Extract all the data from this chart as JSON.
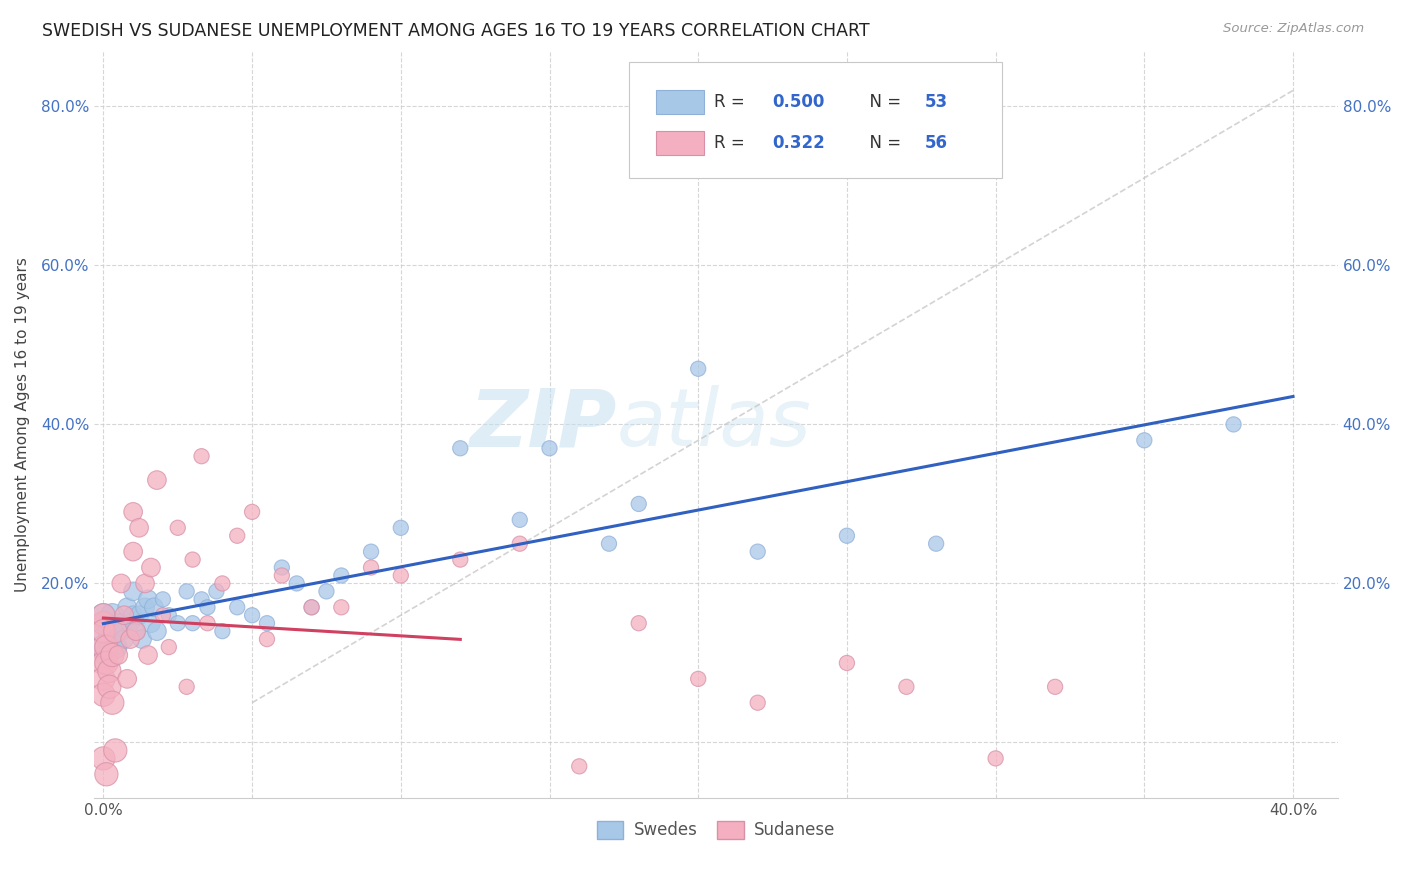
{
  "title": "SWEDISH VS SUDANESE UNEMPLOYMENT AMONG AGES 16 TO 19 YEARS CORRELATION CHART",
  "source": "Source: ZipAtlas.com",
  "ylabel": "Unemployment Among Ages 16 to 19 years",
  "xlim_lo": -0.003,
  "xlim_hi": 0.415,
  "ylim_lo": -0.07,
  "ylim_hi": 0.87,
  "xtick_vals": [
    0.0,
    0.05,
    0.1,
    0.15,
    0.2,
    0.25,
    0.3,
    0.35,
    0.4
  ],
  "xticklabels": [
    "0.0%",
    "",
    "",
    "",
    "",
    "",
    "",
    "",
    "40.0%"
  ],
  "ytick_vals": [
    0.0,
    0.2,
    0.4,
    0.6,
    0.8
  ],
  "yticklabels_left": [
    "",
    "20.0%",
    "40.0%",
    "60.0%",
    "80.0%"
  ],
  "yticklabels_right": [
    "",
    "20.0%",
    "40.0%",
    "60.0%",
    "80.0%"
  ],
  "swedes_color": "#a8c8e8",
  "sudanese_color": "#f4b0c0",
  "swedes_R": 0.5,
  "swedes_N": 53,
  "sudanese_R": 0.322,
  "sudanese_N": 56,
  "swedes_line_color": "#3060c0",
  "sudanese_line_color": "#d04060",
  "ref_line_color": "#c8c8c8",
  "watermark": "ZIPatlas",
  "background_color": "#ffffff",
  "swedes_x": [
    0.0,
    0.0,
    0.0,
    0.001,
    0.001,
    0.002,
    0.003,
    0.004,
    0.005,
    0.006,
    0.007,
    0.008,
    0.009,
    0.01,
    0.01,
    0.011,
    0.012,
    0.013,
    0.014,
    0.015,
    0.016,
    0.017,
    0.018,
    0.02,
    0.022,
    0.025,
    0.028,
    0.03,
    0.033,
    0.035,
    0.038,
    0.04,
    0.045,
    0.05,
    0.055,
    0.06,
    0.065,
    0.07,
    0.075,
    0.08,
    0.09,
    0.1,
    0.12,
    0.14,
    0.15,
    0.17,
    0.18,
    0.2,
    0.22,
    0.25,
    0.28,
    0.35,
    0.38
  ],
  "swedes_y": [
    0.12,
    0.14,
    0.16,
    0.11,
    0.15,
    0.13,
    0.16,
    0.12,
    0.15,
    0.14,
    0.13,
    0.17,
    0.15,
    0.16,
    0.19,
    0.14,
    0.16,
    0.13,
    0.17,
    0.18,
    0.15,
    0.17,
    0.14,
    0.18,
    0.16,
    0.15,
    0.19,
    0.15,
    0.18,
    0.17,
    0.19,
    0.14,
    0.17,
    0.16,
    0.15,
    0.22,
    0.2,
    0.17,
    0.19,
    0.21,
    0.24,
    0.27,
    0.37,
    0.28,
    0.37,
    0.25,
    0.3,
    0.47,
    0.24,
    0.26,
    0.25,
    0.38,
    0.4
  ],
  "sudanese_x": [
    0.0,
    0.0,
    0.0,
    0.0,
    0.0,
    0.0,
    0.0,
    0.0,
    0.001,
    0.001,
    0.001,
    0.002,
    0.002,
    0.003,
    0.003,
    0.004,
    0.004,
    0.005,
    0.006,
    0.007,
    0.008,
    0.009,
    0.01,
    0.01,
    0.011,
    0.012,
    0.014,
    0.015,
    0.016,
    0.018,
    0.02,
    0.022,
    0.025,
    0.028,
    0.03,
    0.033,
    0.035,
    0.04,
    0.045,
    0.05,
    0.055,
    0.06,
    0.07,
    0.08,
    0.09,
    0.1,
    0.12,
    0.14,
    0.16,
    0.18,
    0.2,
    0.22,
    0.25,
    0.27,
    0.3,
    0.32
  ],
  "sudanese_y": [
    0.15,
    0.12,
    0.1,
    0.16,
    0.08,
    0.14,
    -0.02,
    0.06,
    0.12,
    0.1,
    -0.04,
    0.09,
    0.07,
    0.11,
    0.05,
    0.14,
    -0.01,
    0.11,
    0.2,
    0.16,
    0.08,
    0.13,
    0.29,
    0.24,
    0.14,
    0.27,
    0.2,
    0.11,
    0.22,
    0.33,
    0.16,
    0.12,
    0.27,
    0.07,
    0.23,
    0.36,
    0.15,
    0.2,
    0.26,
    0.29,
    0.13,
    0.21,
    0.17,
    0.17,
    0.22,
    0.21,
    0.23,
    0.25,
    -0.03,
    0.15,
    0.08,
    0.05,
    0.1,
    0.07,
    -0.02,
    0.07
  ]
}
